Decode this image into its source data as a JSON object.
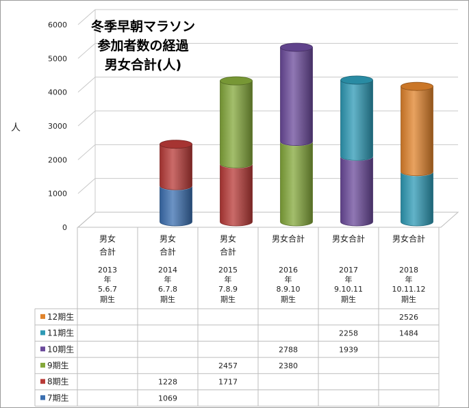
{
  "chart_data": {
    "type": "bar",
    "stacked": true,
    "title": [
      "冬季早朝マラソン",
      "参加者数の経過",
      "男女合計(人)"
    ],
    "ylabel": "人",
    "ylim": [
      0,
      6000
    ],
    "yticks": [
      "0",
      "1000",
      "2000",
      "3000",
      "4000",
      "5000",
      "6000"
    ],
    "grid": true,
    "legend_placement": "data-table-left",
    "categories": [
      [
        "男女",
        "合計",
        "",
        "2013",
        "年",
        "5.6.7",
        "期生"
      ],
      [
        "男女",
        "合計",
        "",
        "2014",
        "年",
        "6.7.8",
        "期生"
      ],
      [
        "男女",
        "合計",
        "",
        "2015",
        "年",
        "7.8.9",
        "期生"
      ],
      [
        "男女合計",
        "",
        "",
        "2016",
        "年",
        "8.9.10",
        "期生"
      ],
      [
        "男女合計",
        "",
        "",
        "2017",
        "年",
        "9.10.11",
        "期生"
      ],
      [
        "男女合計",
        "",
        "",
        "2018",
        "年",
        "10.11.12",
        "期生"
      ]
    ],
    "series": [
      {
        "name": "7期生",
        "color": "#3B6FB0",
        "values": [
          null,
          1069,
          null,
          null,
          null,
          null
        ],
        "labels": [
          "",
          "1069",
          "",
          "",
          "",
          ""
        ]
      },
      {
        "name": "8期生",
        "color": "#B83A37",
        "values": [
          null,
          1228,
          1717,
          null,
          null,
          null
        ],
        "labels": [
          "",
          "1228",
          "1717",
          "",
          "",
          ""
        ]
      },
      {
        "name": "9期生",
        "color": "#84A83B",
        "values": [
          null,
          null,
          2457,
          2380,
          null,
          null
        ],
        "labels": [
          "",
          "",
          "2457",
          "2380",
          "",
          ""
        ]
      },
      {
        "name": "10期生",
        "color": "#6B4A9B",
        "values": [
          null,
          null,
          null,
          2788,
          1939,
          null
        ],
        "labels": [
          "",
          "",
          "",
          "2788",
          "1939",
          ""
        ]
      },
      {
        "name": "11期生",
        "color": "#2E9AB5",
        "values": [
          null,
          null,
          null,
          null,
          2258,
          1484
        ],
        "labels": [
          "",
          "",
          "",
          "",
          "2258",
          "1484"
        ]
      },
      {
        "name": "12期生",
        "color": "#E0832B",
        "values": [
          null,
          null,
          null,
          null,
          null,
          2526
        ],
        "labels": [
          "",
          "",
          "",
          "",
          "",
          "2526"
        ]
      }
    ]
  }
}
